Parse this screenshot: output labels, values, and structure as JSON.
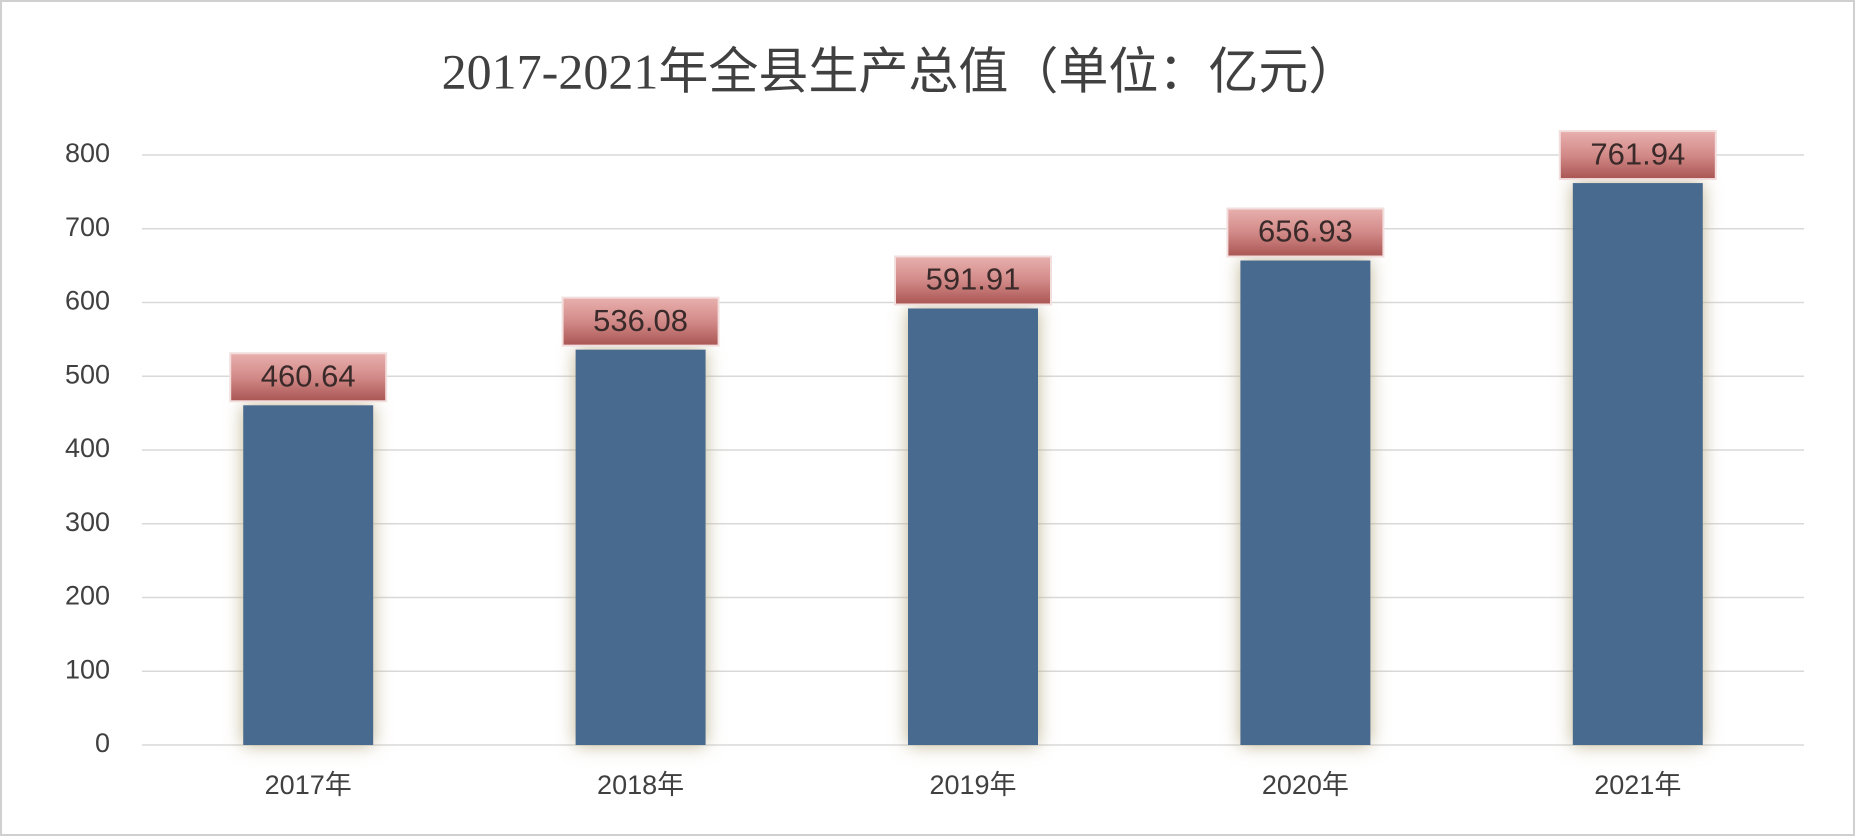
{
  "chart_data": {
    "type": "bar",
    "title": "2017-2021年全县生产总值（单位：亿元）",
    "categories": [
      "2017年",
      "2018年",
      "2019年",
      "2020年",
      "2021年"
    ],
    "values": [
      460.64,
      536.08,
      591.91,
      656.93,
      761.94
    ],
    "color": "#4a6a8f",
    "ylim": [
      0,
      800
    ],
    "yticks": [
      0,
      100,
      200,
      300,
      400,
      500,
      600,
      700,
      800
    ],
    "grid": true
  }
}
